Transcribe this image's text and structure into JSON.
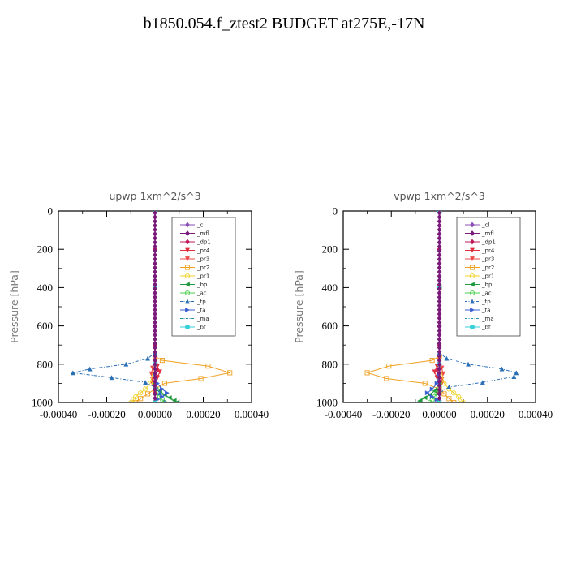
{
  "title": "b1850.054.f_ztest2  BUDGET at275E,-17N",
  "colors": {
    "_cl": "#8a50b8",
    "_mfl": "#7a1a7a",
    "_dp1": "#c0195a",
    "_pr4": "#e03040",
    "_pr3": "#ee4a4a",
    "_pr2": "#f0a020",
    "_pr1": "#f2d22a",
    "_bp": "#1f9a3f",
    "_ac": "#4bd04b",
    "_tp": "#2a6fb5",
    "_ta": "#3a5fcf",
    "_ma": "#2090a8",
    "_bt": "#35d0d8"
  },
  "chart_data": [
    {
      "type": "line",
      "title": "upwp   1xm^2/s^3",
      "ylabel": "Pressure [hPa]",
      "xlim": [
        -0.0004,
        0.0004
      ],
      "ylim": [
        1000,
        0
      ],
      "y_reversed": true,
      "xticks": [
        "-0.00040",
        "-0.00020",
        "0.00000",
        "0.00020",
        "0.00040"
      ],
      "yticks": [
        "0",
        "200",
        "400",
        "600",
        "800",
        "1000"
      ],
      "legend_position": "top-right",
      "series": [
        {
          "name": "_cl",
          "x": [
            0.0,
            0.0,
            0.0,
            0.0,
            0.0,
            0.0,
            0.0,
            0.0
          ],
          "y": [
            0,
            200,
            400,
            600,
            700,
            800,
            900,
            1000
          ]
        },
        {
          "name": "_mfl",
          "x": [
            0.0,
            0.0,
            0.0,
            0.0,
            0.0,
            0.0
          ],
          "y": [
            0,
            200,
            400,
            600,
            800,
            1000
          ]
        },
        {
          "name": "_dp1",
          "x": [
            0.0,
            0.0,
            0.0,
            0.0,
            5e-06,
            1e-05,
            5e-06,
            -5e-06,
            0.0,
            0.0
          ],
          "y": [
            0,
            200,
            400,
            700,
            800,
            830,
            860,
            900,
            950,
            1000
          ]
        },
        {
          "name": "_pr4",
          "x": [
            0.0,
            0.0,
            0.0,
            1e-05,
            2e-05,
            1e-05,
            -1e-05,
            0.0,
            0.0
          ],
          "y": [
            0,
            400,
            780,
            810,
            840,
            870,
            900,
            950,
            1000
          ]
        },
        {
          "name": "_pr3",
          "x": [
            0.0,
            0.0,
            0.0,
            -1e-05,
            -1.5e-05,
            -1e-05,
            0.0,
            0.0
          ],
          "y": [
            0,
            400,
            780,
            820,
            850,
            880,
            920,
            1000
          ]
        },
        {
          "name": "_pr2",
          "x": [
            0.0,
            0.0,
            0.0,
            3e-05,
            0.00022,
            0.00031,
            0.00019,
            4e-05,
            0.0,
            -3e-05,
            -6e-05,
            -8e-05
          ],
          "y": [
            0,
            400,
            760,
            780,
            810,
            845,
            875,
            900,
            930,
            955,
            980,
            1000
          ]
        },
        {
          "name": "_pr1",
          "x": [
            0.0,
            0.0,
            -2e-05,
            -4e-05,
            -6e-05,
            -8e-05,
            -9e-05,
            -0.0001
          ],
          "y": [
            0,
            800,
            900,
            930,
            950,
            970,
            985,
            1000
          ]
        },
        {
          "name": "_bp",
          "x": [
            0.0,
            0.0,
            2e-05,
            4e-05,
            6e-05,
            8e-05,
            9e-05
          ],
          "y": [
            0,
            900,
            940,
            960,
            975,
            990,
            1000
          ]
        },
        {
          "name": "_ac",
          "x": [
            0.0,
            0.0,
            1e-05,
            2e-05,
            3e-05,
            4e-05
          ],
          "y": [
            0,
            920,
            950,
            970,
            985,
            1000
          ]
        },
        {
          "name": "_tp",
          "x": [
            0.0,
            0.0,
            0.0,
            -3e-05,
            -0.00012,
            -0.00027,
            -0.00034,
            -0.00018,
            -4e-05,
            0.0,
            2e-05,
            4e-05
          ],
          "y": [
            0,
            400,
            740,
            770,
            800,
            825,
            845,
            870,
            895,
            920,
            950,
            1000
          ]
        },
        {
          "name": "_ta",
          "x": [
            0.0,
            0.0,
            1e-05,
            3e-05,
            5e-05,
            3e-05,
            1e-05,
            0.0
          ],
          "y": [
            0,
            850,
            900,
            930,
            950,
            970,
            985,
            1000
          ]
        },
        {
          "name": "_ma",
          "x": [
            0.0,
            0.0,
            0.0,
            0.0
          ],
          "y": [
            0,
            400,
            800,
            1000
          ]
        },
        {
          "name": "_bt",
          "x": [
            0.0,
            0.0,
            0.0,
            0.0
          ],
          "y": [
            0,
            400,
            800,
            1000
          ]
        }
      ]
    },
    {
      "type": "line",
      "title": "vpwp   1xm^2/s^3",
      "ylabel": "Pressure [hPa]",
      "xlim": [
        -0.0004,
        0.0004
      ],
      "ylim": [
        1000,
        0
      ],
      "y_reversed": true,
      "xticks": [
        "-0.00040",
        "-0.00020",
        "0.00000",
        "0.00020",
        "0.00040"
      ],
      "yticks": [
        "0",
        "200",
        "400",
        "600",
        "800",
        "1000"
      ],
      "legend_position": "top-right",
      "series": [
        {
          "name": "_cl",
          "x": [
            0.0,
            0.0,
            0.0,
            0.0,
            0.0,
            0.0,
            0.0,
            0.0
          ],
          "y": [
            0,
            200,
            400,
            600,
            700,
            800,
            900,
            1000
          ]
        },
        {
          "name": "_mfl",
          "x": [
            0.0,
            0.0,
            0.0,
            0.0,
            0.0,
            0.0
          ],
          "y": [
            0,
            200,
            400,
            600,
            800,
            1000
          ]
        },
        {
          "name": "_dp1",
          "x": [
            0.0,
            0.0,
            0.0,
            0.0,
            -5e-06,
            -1e-05,
            -5e-06,
            5e-06,
            0.0,
            0.0
          ],
          "y": [
            0,
            200,
            400,
            700,
            800,
            830,
            860,
            900,
            950,
            1000
          ]
        },
        {
          "name": "_pr4",
          "x": [
            0.0,
            0.0,
            0.0,
            -1e-05,
            -2e-05,
            -1e-05,
            1e-05,
            0.0,
            0.0
          ],
          "y": [
            0,
            400,
            780,
            810,
            840,
            870,
            900,
            950,
            1000
          ]
        },
        {
          "name": "_pr3",
          "x": [
            0.0,
            0.0,
            0.0,
            1e-05,
            1.5e-05,
            1e-05,
            0.0,
            0.0
          ],
          "y": [
            0,
            400,
            780,
            820,
            850,
            880,
            920,
            1000
          ]
        },
        {
          "name": "_pr2",
          "x": [
            0.0,
            0.0,
            0.0,
            -3e-05,
            -0.00021,
            -0.0003,
            -0.00022,
            -6e-05,
            0.0,
            2e-05,
            4e-05,
            6e-05
          ],
          "y": [
            0,
            400,
            760,
            780,
            810,
            845,
            875,
            900,
            930,
            955,
            980,
            1000
          ]
        },
        {
          "name": "_pr1",
          "x": [
            0.0,
            0.0,
            2e-05,
            4e-05,
            6e-05,
            8e-05,
            9e-05,
            0.0001
          ],
          "y": [
            0,
            800,
            900,
            930,
            950,
            970,
            985,
            1000
          ]
        },
        {
          "name": "_bp",
          "x": [
            0.0,
            0.0,
            -2e-05,
            -4e-05,
            -6e-05,
            -8e-05,
            -9e-05
          ],
          "y": [
            0,
            900,
            940,
            960,
            975,
            990,
            1000
          ]
        },
        {
          "name": "_ac",
          "x": [
            0.0,
            0.0,
            -1e-05,
            -2e-05,
            -3e-05,
            -4e-05
          ],
          "y": [
            0,
            920,
            950,
            970,
            985,
            1000
          ]
        },
        {
          "name": "_tp",
          "x": [
            0.0,
            0.0,
            0.0,
            3e-05,
            0.00012,
            0.00026,
            0.00032,
            0.00031,
            0.00018,
            4e-05,
            0.0,
            0.0
          ],
          "y": [
            0,
            400,
            740,
            770,
            800,
            825,
            845,
            865,
            895,
            920,
            950,
            1000
          ]
        },
        {
          "name": "_ta",
          "x": [
            0.0,
            0.0,
            -1e-05,
            -3e-05,
            -5e-05,
            -3e-05,
            -1e-05,
            0.0
          ],
          "y": [
            0,
            850,
            900,
            930,
            950,
            970,
            985,
            1000
          ]
        },
        {
          "name": "_ma",
          "x": [
            0.0,
            0.0,
            0.0,
            0.0
          ],
          "y": [
            0,
            400,
            800,
            1000
          ]
        },
        {
          "name": "_bt",
          "x": [
            0.0,
            0.0,
            0.0,
            0.0
          ],
          "y": [
            0,
            400,
            800,
            1000
          ]
        }
      ]
    }
  ]
}
